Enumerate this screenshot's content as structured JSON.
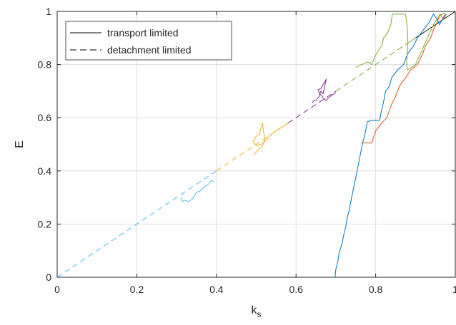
{
  "chart_data": {
    "type": "line",
    "title": "",
    "xlabel": "k",
    "xlabel_sub": "s",
    "ylabel": "E",
    "xlim": [
      0,
      1
    ],
    "ylim": [
      0,
      1
    ],
    "xticks": [
      0,
      0.2,
      0.4,
      0.6,
      0.8,
      1
    ],
    "xtick_labels": [
      "0",
      "0.2",
      "0.4",
      "0.6",
      "0.8",
      "1"
    ],
    "yticks": [
      0,
      0.2,
      0.4,
      0.6,
      0.8,
      1
    ],
    "ytick_labels": [
      "0",
      "0.2",
      "0.4",
      "0.6",
      "0.8",
      "1"
    ],
    "grid": true,
    "legend_position": "top-left",
    "legend": [
      {
        "label": "transport limited",
        "dash": "solid",
        "color": "#000000"
      },
      {
        "label": "detachment limited",
        "dash": "dashed",
        "color": "#000000"
      }
    ],
    "series": [
      {
        "color": "#0072BD",
        "points": [
          [
            0.698,
            0.0
          ],
          [
            0.7,
            0.03
          ],
          [
            0.705,
            0.06
          ],
          [
            0.708,
            0.09
          ],
          [
            0.712,
            0.11
          ],
          [
            0.716,
            0.13
          ],
          [
            0.72,
            0.16
          ],
          [
            0.725,
            0.19
          ],
          [
            0.728,
            0.22
          ],
          [
            0.733,
            0.25
          ],
          [
            0.737,
            0.28
          ],
          [
            0.741,
            0.31
          ],
          [
            0.745,
            0.34
          ],
          [
            0.748,
            0.36
          ],
          [
            0.752,
            0.39
          ],
          [
            0.756,
            0.42
          ],
          [
            0.76,
            0.45
          ],
          [
            0.764,
            0.48
          ],
          [
            0.768,
            0.51
          ],
          [
            0.772,
            0.53
          ],
          [
            0.776,
            0.56
          ],
          [
            0.779,
            0.585
          ],
          [
            0.79,
            0.59
          ],
          [
            0.81,
            0.59
          ],
          [
            0.815,
            0.63
          ],
          [
            0.82,
            0.66
          ],
          [
            0.825,
            0.7
          ],
          [
            0.835,
            0.72
          ],
          [
            0.84,
            0.75
          ],
          [
            0.855,
            0.78
          ],
          [
            0.87,
            0.8
          ],
          [
            0.88,
            0.84
          ],
          [
            0.895,
            0.87
          ],
          [
            0.905,
            0.9
          ],
          [
            0.92,
            0.93
          ],
          [
            0.935,
            0.96
          ],
          [
            0.945,
            0.99
          ],
          [
            0.955,
            0.97
          ],
          [
            0.96,
            0.95
          ],
          [
            0.968,
            0.97
          ],
          [
            0.975,
            0.99
          ]
        ]
      },
      {
        "color": "#D95319",
        "points": [
          [
            0.765,
            0.505
          ],
          [
            0.79,
            0.505
          ],
          [
            0.8,
            0.55
          ],
          [
            0.815,
            0.58
          ],
          [
            0.828,
            0.6
          ],
          [
            0.84,
            0.65
          ],
          [
            0.85,
            0.68
          ],
          [
            0.86,
            0.72
          ],
          [
            0.875,
            0.75
          ],
          [
            0.888,
            0.78
          ],
          [
            0.905,
            0.8
          ],
          [
            0.918,
            0.84
          ],
          [
            0.925,
            0.87
          ],
          [
            0.938,
            0.9
          ],
          [
            0.945,
            0.93
          ],
          [
            0.955,
            0.96
          ],
          [
            0.962,
            0.99
          ],
          [
            0.97,
            0.97
          ],
          [
            0.978,
            0.99
          ]
        ]
      },
      {
        "color": "#EDB120",
        "points": [
          [
            0.494,
            0.46
          ],
          [
            0.5,
            0.47
          ],
          [
            0.508,
            0.485
          ],
          [
            0.515,
            0.49
          ],
          [
            0.522,
            0.52
          ],
          [
            0.518,
            0.55
          ],
          [
            0.516,
            0.58
          ],
          [
            0.508,
            0.54
          ],
          [
            0.5,
            0.53
          ],
          [
            0.492,
            0.51
          ],
          [
            0.502,
            0.495
          ],
          [
            0.512,
            0.5
          ],
          [
            0.525,
            0.515
          ],
          [
            0.54,
            0.54
          ],
          [
            0.56,
            0.56
          ],
          [
            0.58,
            0.58
          ]
        ]
      },
      {
        "color": "#7E2F8E",
        "points": [
          [
            0.64,
            0.655
          ],
          [
            0.645,
            0.665
          ],
          [
            0.65,
            0.665
          ],
          [
            0.658,
            0.68
          ],
          [
            0.662,
            0.7
          ],
          [
            0.668,
            0.69
          ],
          [
            0.672,
            0.72
          ],
          [
            0.676,
            0.745
          ],
          [
            0.67,
            0.73
          ],
          [
            0.662,
            0.71
          ],
          [
            0.655,
            0.705
          ],
          [
            0.66,
            0.69
          ],
          [
            0.668,
            0.675
          ],
          [
            0.675,
            0.665
          ],
          [
            0.682,
            0.675
          ],
          [
            0.69,
            0.685
          ],
          [
            0.7,
            0.695
          ]
        ]
      },
      {
        "color": "#77AC30",
        "points": [
          [
            0.75,
            0.79
          ],
          [
            0.765,
            0.8
          ],
          [
            0.78,
            0.81
          ],
          [
            0.79,
            0.8
          ],
          [
            0.798,
            0.83
          ],
          [
            0.806,
            0.85
          ],
          [
            0.815,
            0.87
          ],
          [
            0.82,
            0.9
          ],
          [
            0.83,
            0.92
          ],
          [
            0.838,
            0.95
          ],
          [
            0.842,
            0.99
          ],
          [
            0.855,
            0.99
          ],
          [
            0.865,
            0.99
          ],
          [
            0.875,
            0.99
          ],
          [
            0.878,
            0.96
          ],
          [
            0.88,
            0.92
          ],
          [
            0.881,
            0.88
          ],
          [
            0.879,
            0.84
          ],
          [
            0.878,
            0.8
          ],
          [
            0.88,
            0.78
          ],
          [
            0.9,
            0.8
          ],
          [
            0.915,
            0.85
          ],
          [
            0.93,
            0.9
          ],
          [
            0.945,
            0.95
          ],
          [
            0.96,
            0.985
          ],
          [
            0.975,
            0.995
          ]
        ]
      },
      {
        "color": "#4DBEEE",
        "points": [
          [
            0.31,
            0.3
          ],
          [
            0.315,
            0.285
          ],
          [
            0.32,
            0.29
          ],
          [
            0.33,
            0.285
          ],
          [
            0.34,
            0.295
          ],
          [
            0.35,
            0.32
          ],
          [
            0.36,
            0.325
          ],
          [
            0.37,
            0.34
          ],
          [
            0.38,
            0.35
          ],
          [
            0.388,
            0.365
          ],
          [
            0.393,
            0.36
          ]
        ]
      }
    ]
  }
}
